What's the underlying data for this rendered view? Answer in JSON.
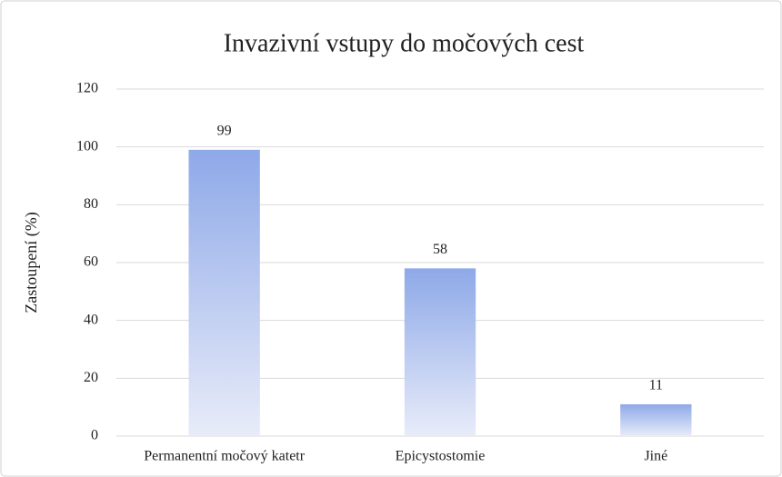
{
  "chart_data": {
    "type": "bar",
    "title": "Invazivní vstupy do močových cest",
    "y_label": "Zastoupení (%)",
    "categories": [
      "Permanentní močový katetr",
      "Epicystostomie",
      "Jiné"
    ],
    "values": [
      99,
      58,
      11
    ],
    "color": "#8ea9e8",
    "ylim": [
      0,
      120
    ],
    "yticks": [
      0,
      20,
      40,
      60,
      80,
      100,
      120
    ],
    "grid": true
  }
}
